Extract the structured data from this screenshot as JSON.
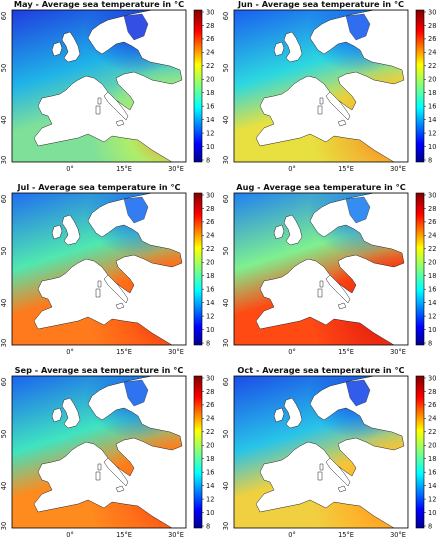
{
  "figure": {
    "panels": [
      {
        "title": "May - Average sea temperature in °C",
        "month": "May",
        "palette": "may"
      },
      {
        "title": "Jun - Average sea temperature in °C",
        "month": "Jun",
        "palette": "jun"
      },
      {
        "title": "Jul - Average sea temperature in °C",
        "month": "Jul",
        "palette": "jul"
      },
      {
        "title": "Aug - Average sea temperature in °C",
        "month": "Aug",
        "palette": "aug"
      },
      {
        "title": "Sep - Average sea temperature in °C",
        "month": "Sep",
        "palette": "sep"
      },
      {
        "title": "Oct - Average sea temperature in °C",
        "month": "Oct",
        "palette": "oct"
      }
    ],
    "colorbar": {
      "ticks": [
        "30",
        "28",
        "26",
        "24",
        "22",
        "20",
        "18",
        "16",
        "14",
        "12",
        "10",
        "8"
      ],
      "min": 8,
      "max": 30,
      "colormap": "jet"
    },
    "lat_ticks": [
      "60",
      "50",
      "40",
      "30"
    ],
    "lon_ticks": [
      "0°",
      "15°E",
      "30°E"
    ],
    "palettes": {
      "may": {
        "north": "#1f3ce0",
        "mid": "#1fb3e8",
        "med": "#7fe09a",
        "east": "#b8f060",
        "levant": "#ff8a20"
      },
      "jun": {
        "north": "#1a5ef0",
        "mid": "#2cd8e0",
        "med": "#e8e040",
        "east": "#f2b230",
        "levant": "#ff7a18"
      },
      "jul": {
        "north": "#1f6ef0",
        "mid": "#50e8b0",
        "med": "#ff7a1c",
        "east": "#ff5a14",
        "levant": "#e82c10"
      },
      "aug": {
        "north": "#2080f0",
        "mid": "#7ff090",
        "med": "#ff4a14",
        "east": "#ee2a10",
        "levant": "#d81a0c"
      },
      "sep": {
        "north": "#1a64f0",
        "mid": "#40e4c0",
        "med": "#ff8a1e",
        "east": "#ff6a18",
        "levant": "#f04010"
      },
      "oct": {
        "north": "#1b4ce8",
        "mid": "#28c4e8",
        "med": "#f0d040",
        "east": "#ffb028",
        "levant": "#ff8a1c"
      }
    }
  }
}
